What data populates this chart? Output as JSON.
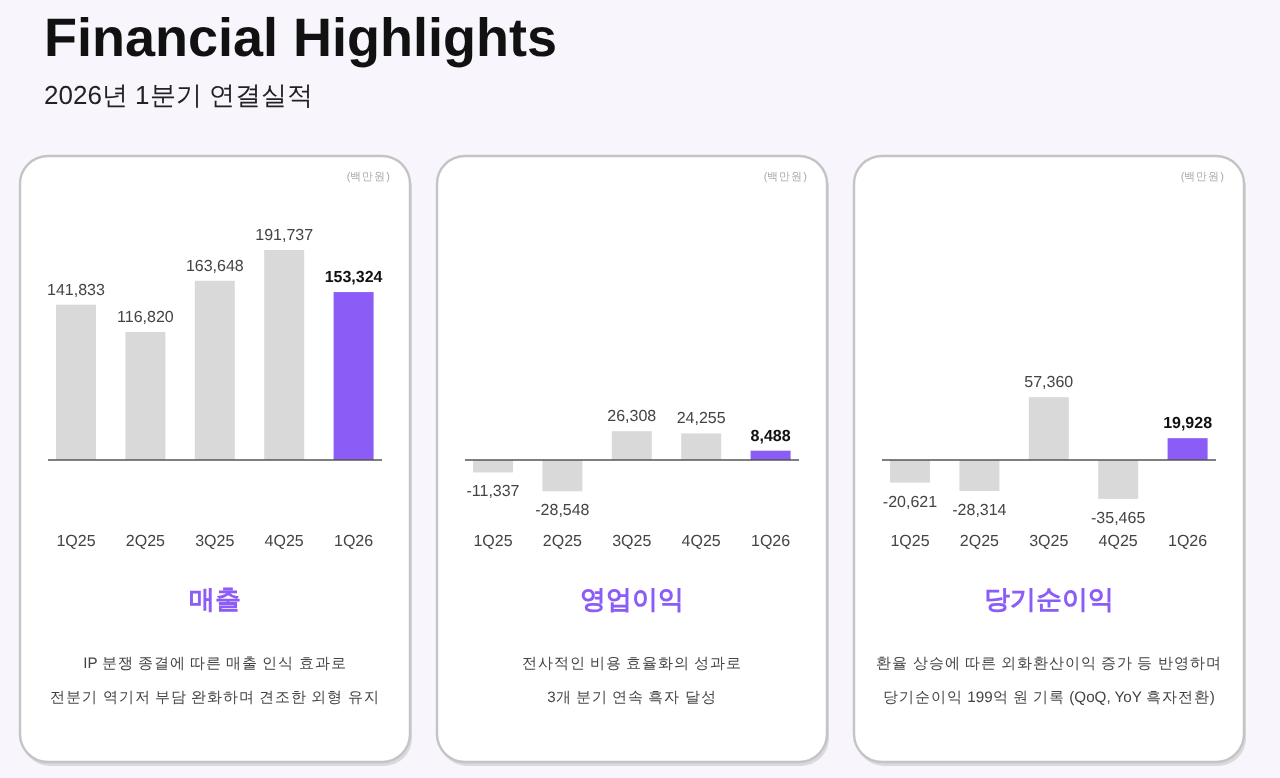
{
  "chart_data": [
    {
      "type": "other",
      "title": "Financial Highlights",
      "subtitle": "2026년 1분기 연결실적"
    },
    {
      "type": "bar",
      "title": "매출",
      "categories": [
        "1Q25",
        "2Q25",
        "3Q25",
        "4Q25",
        "1Q26"
      ],
      "values": [
        141833,
        116820,
        163648,
        191737,
        153324
      ],
      "value_labels": [
        "141,833",
        "116,820",
        "163,648",
        "191,737",
        "153,324"
      ],
      "colors": [
        "#d9d9d9",
        "#d9d9d9",
        "#d9d9d9",
        "#d9d9d9",
        "#8b5cf6"
      ],
      "annotations": [
        "(백만원)",
        "IP 분쟁 종결에 따른 매출 인식 효과로",
        "전분기 역기저 부담 완화하며 견조한 외형 유지"
      ]
    },
    {
      "type": "bar",
      "title": "영업이익",
      "categories": [
        "1Q25",
        "2Q25",
        "3Q25",
        "4Q25",
        "1Q26"
      ],
      "values": [
        -11337,
        -28548,
        26308,
        24255,
        8488
      ],
      "value_labels": [
        "-11,337",
        "-28,548",
        "26,308",
        "24,255",
        "8,488"
      ],
      "colors": [
        "#d9d9d9",
        "#d9d9d9",
        "#d9d9d9",
        "#d9d9d9",
        "#8b5cf6"
      ],
      "annotations": [
        "(백만원)",
        "전사적인 비용 효율화의 성과로",
        "3개 분기 연속 흑자 달성"
      ]
    },
    {
      "type": "bar",
      "title": "당기순이익",
      "categories": [
        "1Q25",
        "2Q25",
        "3Q25",
        "4Q25",
        "1Q26"
      ],
      "values": [
        -20621,
        -28314,
        57360,
        -35465,
        19928
      ],
      "value_labels": [
        "-20,621",
        "-28,314",
        "57,360",
        "-35,465",
        "19,928"
      ],
      "colors": [
        "#d9d9d9",
        "#d9d9d9",
        "#d9d9d9",
        "#d9d9d9",
        "#8b5cf6"
      ],
      "annotations": [
        "(백만원)",
        "환율 상승에 따른 외화환산이익 증가 등 반영하며",
        "당기순이익 199억 원 기록 (QoQ, YoY 흑자전환)"
      ]
    }
  ]
}
